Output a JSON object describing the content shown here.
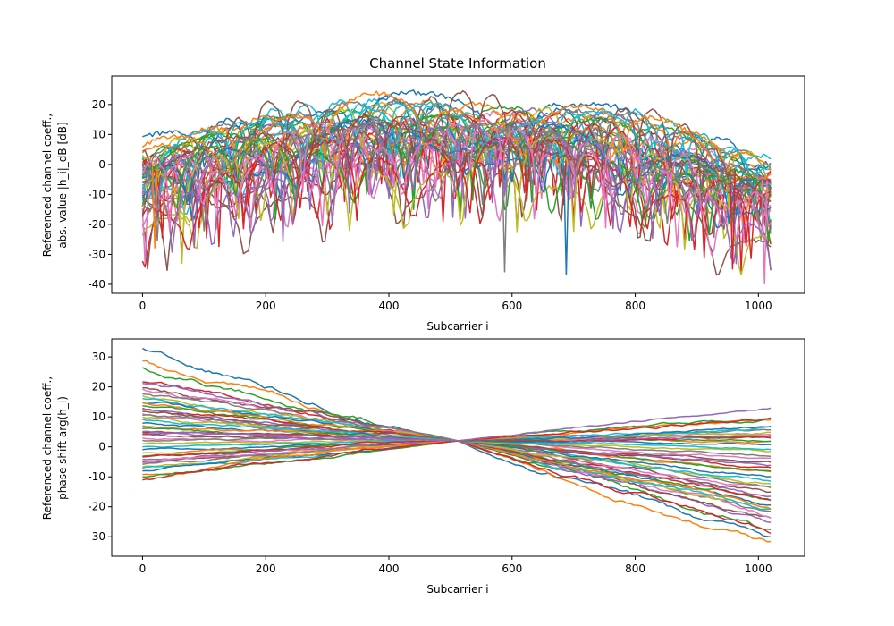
{
  "figure": {
    "title": "Channel State Information"
  },
  "palette": [
    "#1f77b4",
    "#ff7f0e",
    "#2ca02c",
    "#d62728",
    "#9467bd",
    "#8c564b",
    "#e377c2",
    "#7f7f7f",
    "#bcbd22",
    "#17becf"
  ],
  "chart_data": [
    {
      "type": "line",
      "title": "Channel State Information",
      "xlabel": "Subcarrier i",
      "ylabel_line1": "Referenced channel coeff.,",
      "ylabel_line2": "abs. value |h_i|_dB [dB]",
      "xlim": [
        -50,
        1075
      ],
      "ylim": [
        -43,
        29.5
      ],
      "xticks": [
        0,
        200,
        400,
        600,
        800,
        1000
      ],
      "yticks": [
        -40,
        -30,
        -20,
        -10,
        0,
        10,
        20
      ],
      "grid": false,
      "x_range": [
        0,
        1023
      ],
      "series_count": 48,
      "observed": {
        "envelope_max_dB_at": {
          "0": 10,
          "200": 21,
          "400": 25,
          "600": 24,
          "800": 20,
          "1023": 6
        },
        "median_level_dB": 8,
        "deepest_fades_dB": [
          {
            "x": 20,
            "y": -28
          },
          {
            "x": 228,
            "y": -26
          },
          {
            "x": 588,
            "y": -36
          },
          {
            "x": 688,
            "y": -37
          },
          {
            "x": 958,
            "y": -35
          },
          {
            "x": 1010,
            "y": -40
          }
        ]
      }
    },
    {
      "type": "line",
      "xlabel": "Subcarrier i",
      "ylabel_line1": "Referenced channel coeff.,",
      "ylabel_line2": "phase shift arg(h_i)",
      "xlim": [
        -50,
        1075
      ],
      "ylim": [
        -36.5,
        36
      ],
      "xticks": [
        0,
        200,
        400,
        600,
        800,
        1000
      ],
      "yticks": [
        -30,
        -20,
        -10,
        0,
        10,
        20,
        30
      ],
      "grid": false,
      "x_range": [
        0,
        1023
      ],
      "crossing_point": {
        "x": 512,
        "y": 2
      },
      "series_endpoints": [
        {
          "start": 33,
          "end": -32
        },
        {
          "start": 28.5,
          "end": -31
        },
        {
          "start": 26.5,
          "end": -29
        },
        {
          "start": 22,
          "end": -27
        },
        {
          "start": 21,
          "end": -26
        },
        {
          "start": 20,
          "end": -25
        },
        {
          "start": 19,
          "end": -24
        },
        {
          "start": 18,
          "end": -23
        },
        {
          "start": 17,
          "end": -22
        },
        {
          "start": 16,
          "end": -21
        },
        {
          "start": 15,
          "end": -20
        },
        {
          "start": 14.5,
          "end": -19
        },
        {
          "start": 14,
          "end": -18
        },
        {
          "start": 13,
          "end": -17
        },
        {
          "start": 12.5,
          "end": -16
        },
        {
          "start": 12,
          "end": -15
        },
        {
          "start": 11,
          "end": -14
        },
        {
          "start": 10.5,
          "end": -13
        },
        {
          "start": 10,
          "end": -12
        },
        {
          "start": 9,
          "end": -11
        },
        {
          "start": 8,
          "end": -10
        },
        {
          "start": 7,
          "end": -9
        },
        {
          "start": 6,
          "end": -8
        },
        {
          "start": 5,
          "end": -7
        },
        {
          "start": 4.5,
          "end": -6
        },
        {
          "start": 4,
          "end": -5
        },
        {
          "start": 3,
          "end": -4
        },
        {
          "start": 2,
          "end": -3
        },
        {
          "start": 1,
          "end": -2
        },
        {
          "start": 0,
          "end": 0
        },
        {
          "start": -1,
          "end": 1
        },
        {
          "start": -2,
          "end": 2
        },
        {
          "start": -3,
          "end": 2.5
        },
        {
          "start": -3.5,
          "end": 3
        },
        {
          "start": -4,
          "end": 3.5
        },
        {
          "start": -5,
          "end": 4
        },
        {
          "start": -5.5,
          "end": 4.5
        },
        {
          "start": -6,
          "end": 5
        },
        {
          "start": -6.5,
          "end": 5.5
        },
        {
          "start": -7,
          "end": 6
        },
        {
          "start": -8,
          "end": 7
        },
        {
          "start": -9,
          "end": 8
        },
        {
          "start": -10,
          "end": 9
        },
        {
          "start": -11,
          "end": 9.5
        },
        {
          "start": 5,
          "end": 13.5
        }
      ]
    }
  ]
}
